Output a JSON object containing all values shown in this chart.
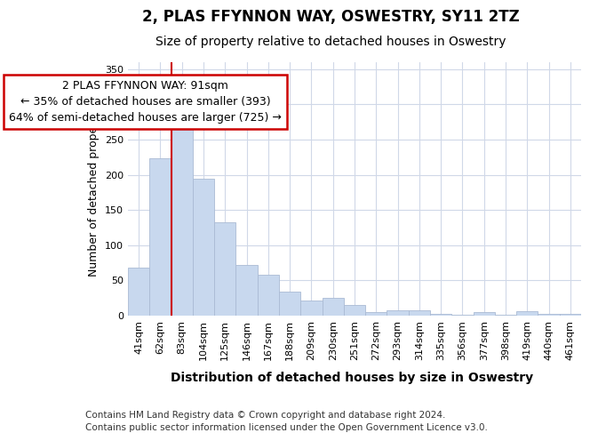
{
  "title": "2, PLAS FFYNNON WAY, OSWESTRY, SY11 2TZ",
  "subtitle": "Size of property relative to detached houses in Oswestry",
  "xlabel": "Distribution of detached houses by size in Oswestry",
  "ylabel": "Number of detached properties",
  "bar_color": "#c8d8ee",
  "bar_edge_color": "#aabbd4",
  "categories": [
    "41sqm",
    "62sqm",
    "83sqm",
    "104sqm",
    "125sqm",
    "146sqm",
    "167sqm",
    "188sqm",
    "209sqm",
    "230sqm",
    "251sqm",
    "272sqm",
    "293sqm",
    "314sqm",
    "335sqm",
    "356sqm",
    "377sqm",
    "398sqm",
    "419sqm",
    "440sqm",
    "461sqm"
  ],
  "values": [
    68,
    224,
    278,
    194,
    133,
    72,
    58,
    34,
    22,
    25,
    15,
    5,
    7,
    8,
    3,
    1,
    5,
    1,
    6,
    2,
    2
  ],
  "ylim": [
    0,
    360
  ],
  "yticks": [
    0,
    50,
    100,
    150,
    200,
    250,
    300,
    350
  ],
  "property_line_x": 1.5,
  "annotation_text": "2 PLAS FFYNNON WAY: 91sqm\n← 35% of detached houses are smaller (393)\n64% of semi-detached houses are larger (725) →",
  "annotation_box_color": "#ffffff",
  "annotation_box_edge": "#cc0000",
  "property_line_color": "#cc0000",
  "footer_line1": "Contains HM Land Registry data © Crown copyright and database right 2024.",
  "footer_line2": "Contains public sector information licensed under the Open Government Licence v3.0.",
  "bg_color": "#ffffff",
  "plot_bg_color": "#ffffff",
  "grid_color": "#d0d8e8",
  "title_fontsize": 12,
  "subtitle_fontsize": 10,
  "ylabel_fontsize": 9,
  "xlabel_fontsize": 10,
  "tick_fontsize": 8,
  "annotation_fontsize": 9,
  "footer_fontsize": 7.5
}
